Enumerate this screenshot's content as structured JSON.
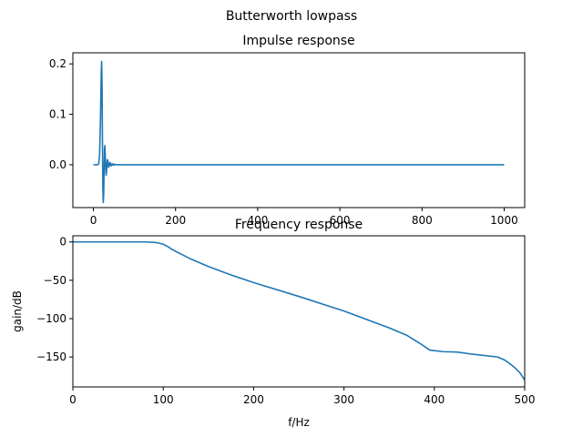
{
  "figure": {
    "suptitle": "Butterworth lowpass"
  },
  "chart_data": [
    {
      "type": "line",
      "title": "Impulse response",
      "xlabel": "",
      "ylabel": "",
      "xlim": [
        -50,
        1050
      ],
      "ylim": [
        -0.085,
        0.222
      ],
      "grid": false,
      "x_ticks": [
        0,
        200,
        400,
        600,
        800,
        1000
      ],
      "y_ticks": [
        0.0,
        0.1,
        0.2
      ],
      "x_tick_labels": [
        "0",
        "200",
        "400",
        "600",
        "800",
        "1000"
      ],
      "y_tick_labels": [
        "0.0",
        "0.1",
        "0.2"
      ],
      "series": [
        {
          "color": "#1f77b4",
          "x": [
            0,
            5,
            10,
            13,
            15,
            17,
            18,
            19,
            20,
            21,
            22,
            23,
            24,
            25,
            26,
            27,
            28,
            29,
            30,
            31,
            32,
            33,
            34,
            35,
            36,
            37,
            38,
            39,
            40,
            41,
            42,
            43,
            44,
            45,
            46,
            47,
            48,
            49,
            50,
            51,
            52,
            53,
            54,
            55,
            56,
            57,
            58,
            59,
            60,
            62,
            64,
            66,
            68,
            70,
            100,
            200,
            400,
            600,
            800,
            1000
          ],
          "y": [
            0.0,
            0.0,
            0.0,
            0.002,
            0.02,
            0.08,
            0.13,
            0.18,
            0.205,
            0.16,
            0.05,
            -0.045,
            -0.075,
            -0.06,
            -0.01,
            0.032,
            0.038,
            0.015,
            -0.01,
            -0.021,
            -0.014,
            0.002,
            0.01,
            0.009,
            0.0,
            -0.005,
            -0.004,
            0.0,
            0.004,
            0.004,
            0.0,
            -0.002,
            -0.002,
            0.0,
            0.002,
            0.002,
            0.0,
            -0.001,
            -0.001,
            0.0,
            0.001,
            0.001,
            0.0,
            0.0,
            0.0,
            0.0,
            0.0,
            0.0,
            0.0,
            0.0,
            0.0,
            0.0,
            0.0,
            0.0,
            0.0,
            0.0,
            0.0,
            0.0,
            0.0,
            0.0
          ]
        }
      ]
    },
    {
      "type": "line",
      "title": "Frequency response",
      "xlabel": "f/Hz",
      "ylabel": "gain/dB",
      "xlim": [
        0,
        500
      ],
      "ylim": [
        -189,
        8
      ],
      "grid": false,
      "x_ticks": [
        0,
        100,
        200,
        300,
        400,
        500
      ],
      "y_ticks": [
        0,
        -50,
        -100,
        -150
      ],
      "x_tick_labels": [
        "0",
        "100",
        "200",
        "300",
        "400",
        "500"
      ],
      "y_tick_labels": [
        "0",
        "−50",
        "−100",
        "−150"
      ],
      "series": [
        {
          "color": "#1f77b4",
          "x": [
            0,
            50,
            80,
            90,
            95,
            100,
            105,
            110,
            120,
            130,
            150,
            175,
            200,
            250,
            300,
            350,
            370,
            385,
            395,
            410,
            425,
            440,
            455,
            470,
            478,
            485,
            490,
            495,
            500
          ],
          "y": [
            0,
            0,
            0,
            -0.5,
            -1.5,
            -3,
            -6,
            -10,
            -16,
            -22,
            -32,
            -43,
            -53,
            -71,
            -90,
            -112,
            -122,
            -133,
            -141,
            -143,
            -143.5,
            -146,
            -148,
            -150,
            -154,
            -160,
            -165,
            -171,
            -180
          ]
        }
      ]
    }
  ]
}
